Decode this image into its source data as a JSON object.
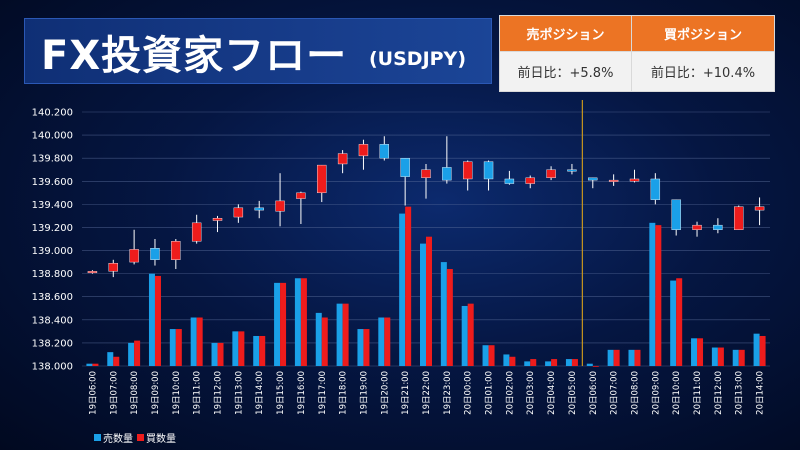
{
  "header": {
    "title": "FX投資家フロー",
    "subtitle": "(USDJPY)"
  },
  "positions": {
    "sell_label": "売ポジション",
    "buy_label": "買ポジション",
    "sell_change": "前日比：+5.8%",
    "buy_change": "前日比：+10.4%"
  },
  "colors": {
    "sell": "#1aa0e8",
    "buy": "#ee1c1c",
    "divider": "#c8961e",
    "background": "#051642",
    "header_orange": "#ec7424"
  },
  "chart_data": {
    "type": "candlestick+bar",
    "ylim": [
      138.0,
      140.2
    ],
    "yticks": [
      "140.200",
      "140.000",
      "139.800",
      "139.600",
      "139.400",
      "139.200",
      "139.000",
      "138.800",
      "138.600",
      "138.400",
      "138.200",
      "138.000"
    ],
    "grid": true,
    "legend_position": "bottom-left",
    "divider_after_index": 23,
    "categories": [
      "19日06:00",
      "19日07:00",
      "19日08:00",
      "19日09:00",
      "19日10:00",
      "19日11:00",
      "19日12:00",
      "19日13:00",
      "19日14:00",
      "19日15:00",
      "19日16:00",
      "19日17:00",
      "19日18:00",
      "19日19:00",
      "19日20:00",
      "19日21:00",
      "19日22:00",
      "19日23:00",
      "20日00:00",
      "20日01:00",
      "20日02:00",
      "20日03:00",
      "20日04:00",
      "20日05:00",
      "20日06:00",
      "20日07:00",
      "20日08:00",
      "20日09:00",
      "20日10:00",
      "20日11:00",
      "20日12:00",
      "20日13:00",
      "20日14:00"
    ],
    "ohlc": [
      [
        138.81,
        138.83,
        138.8,
        138.82
      ],
      [
        138.82,
        138.92,
        138.77,
        138.89
      ],
      [
        138.9,
        139.18,
        138.88,
        139.01
      ],
      [
        139.02,
        139.1,
        138.87,
        138.92
      ],
      [
        138.92,
        139.1,
        138.84,
        139.08
      ],
      [
        139.08,
        139.31,
        139.06,
        139.24
      ],
      [
        139.26,
        139.3,
        139.16,
        139.28
      ],
      [
        139.29,
        139.4,
        139.24,
        139.37
      ],
      [
        139.37,
        139.43,
        139.28,
        139.35
      ],
      [
        139.34,
        139.67,
        139.21,
        139.43
      ],
      [
        139.45,
        139.51,
        139.23,
        139.5
      ],
      [
        139.5,
        139.74,
        139.42,
        139.74
      ],
      [
        139.75,
        139.87,
        139.67,
        139.84
      ],
      [
        139.82,
        139.96,
        139.7,
        139.92
      ],
      [
        139.92,
        139.99,
        139.78,
        139.8
      ],
      [
        139.8,
        139.8,
        139.39,
        139.64
      ],
      [
        139.63,
        139.75,
        139.45,
        139.7
      ],
      [
        139.72,
        139.99,
        139.58,
        139.61
      ],
      [
        139.62,
        139.78,
        139.52,
        139.77
      ],
      [
        139.77,
        139.78,
        139.52,
        139.62
      ],
      [
        139.62,
        139.69,
        139.57,
        139.58
      ],
      [
        139.58,
        139.65,
        139.54,
        139.63
      ],
      [
        139.63,
        139.73,
        139.61,
        139.7
      ],
      [
        139.7,
        139.75,
        139.66,
        139.69
      ],
      [
        139.63,
        139.63,
        139.54,
        139.61
      ],
      [
        139.61,
        139.66,
        139.56,
        139.61
      ],
      [
        139.6,
        139.7,
        139.59,
        139.62
      ],
      [
        139.62,
        139.67,
        139.4,
        139.44
      ],
      [
        139.44,
        139.44,
        139.13,
        139.18
      ],
      [
        139.18,
        139.25,
        139.12,
        139.22
      ],
      [
        139.22,
        139.28,
        139.15,
        139.18
      ],
      [
        139.18,
        139.39,
        139.18,
        139.38
      ],
      [
        139.35,
        139.46,
        139.22,
        139.38
      ]
    ],
    "series": [
      {
        "name": "売数量",
        "values": [
          1,
          6,
          10,
          40,
          16,
          21,
          10,
          15,
          13,
          36,
          38,
          23,
          27,
          16,
          21,
          66,
          53,
          45,
          26,
          9,
          5,
          2,
          2,
          3,
          1,
          7,
          7,
          62,
          37,
          12,
          8,
          7,
          14
        ]
      },
      {
        "name": "買数量",
        "values": [
          1,
          4,
          11,
          39,
          16,
          21,
          10,
          15,
          13,
          36,
          38,
          21,
          27,
          16,
          21,
          69,
          56,
          42,
          27,
          9,
          4,
          3,
          3,
          3,
          0,
          7,
          7,
          61,
          38,
          12,
          8,
          7,
          13
        ]
      }
    ]
  }
}
